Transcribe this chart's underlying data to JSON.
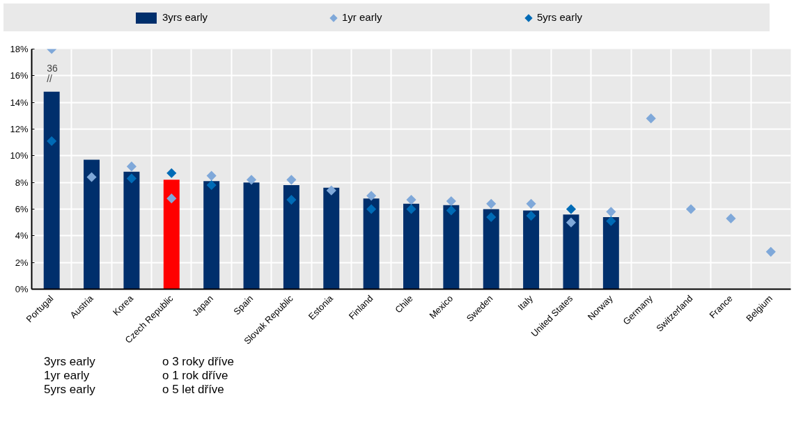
{
  "chart_data": {
    "type": "bar",
    "categories": [
      "Portugal",
      "Austria",
      "Korea",
      "Czech Republic",
      "Japan",
      "Spain",
      "Slovak Republic",
      "Estonia",
      "Finland",
      "Chile",
      "Mexico",
      "Sweden",
      "Italy",
      "United States",
      "Norway",
      "Germany",
      "Switzerland",
      "France",
      "Belgium"
    ],
    "series": [
      {
        "name": "3yrs early",
        "colors": [
          "#002f6c",
          "#002f6c",
          "#002f6c",
          "#ff0000",
          "#002f6c",
          "#002f6c",
          "#002f6c",
          "#002f6c",
          "#002f6c",
          "#002f6c",
          "#002f6c",
          "#002f6c",
          "#002f6c",
          "#002f6c",
          "#002f6c",
          "#002f6c",
          "#002f6c",
          "#002f6c",
          "#002f6c"
        ],
        "values": [
          14.8,
          9.7,
          8.8,
          8.2,
          8.1,
          8.0,
          7.8,
          7.6,
          6.8,
          6.4,
          6.3,
          6.0,
          5.9,
          5.6,
          5.4,
          null,
          null,
          null,
          null
        ]
      },
      {
        "name": "1yr early",
        "type": "scatter",
        "color": "#7fa8d9",
        "values": [
          18,
          8.4,
          9.2,
          6.8,
          8.5,
          8.2,
          8.2,
          7.4,
          7.0,
          6.7,
          6.6,
          6.4,
          6.4,
          5.0,
          5.8,
          12.8,
          6.0,
          5.3,
          2.8
        ]
      },
      {
        "name": "5yrs early",
        "type": "scatter",
        "color": "#006bb6",
        "values": [
          11.1,
          null,
          8.3,
          8.7,
          7.8,
          null,
          6.7,
          null,
          6.0,
          6.0,
          5.9,
          5.4,
          5.5,
          6.0,
          5.1,
          null,
          null,
          null,
          null
        ]
      }
    ],
    "marker": "diamond",
    "ylim": [
      0,
      18
    ],
    "yticks": [
      {
        "value": 0,
        "label": "0%"
      },
      {
        "value": 2,
        "label": "2%"
      },
      {
        "value": 4,
        "label": "4%"
      },
      {
        "value": 6,
        "label": "6%"
      },
      {
        "value": 8,
        "label": "8%"
      },
      {
        "value": 10,
        "label": "10%"
      },
      {
        "value": 12,
        "label": "12%"
      },
      {
        "value": 14,
        "label": "14%"
      },
      {
        "value": 16,
        "label": "16%"
      },
      {
        "value": 18,
        "label": "18%"
      }
    ],
    "grid": true,
    "legend": "top",
    "annotations": [
      {
        "text": "36",
        "x": "Portugal",
        "y": 18
      },
      {
        "text": "//",
        "x": "Portugal",
        "y": 18
      },
      "3yrs early",
      "o 3 roky dříve",
      "1yr early",
      "o 1 rok dříve",
      "5yrs early",
      "o 5 let dříve"
    ]
  }
}
